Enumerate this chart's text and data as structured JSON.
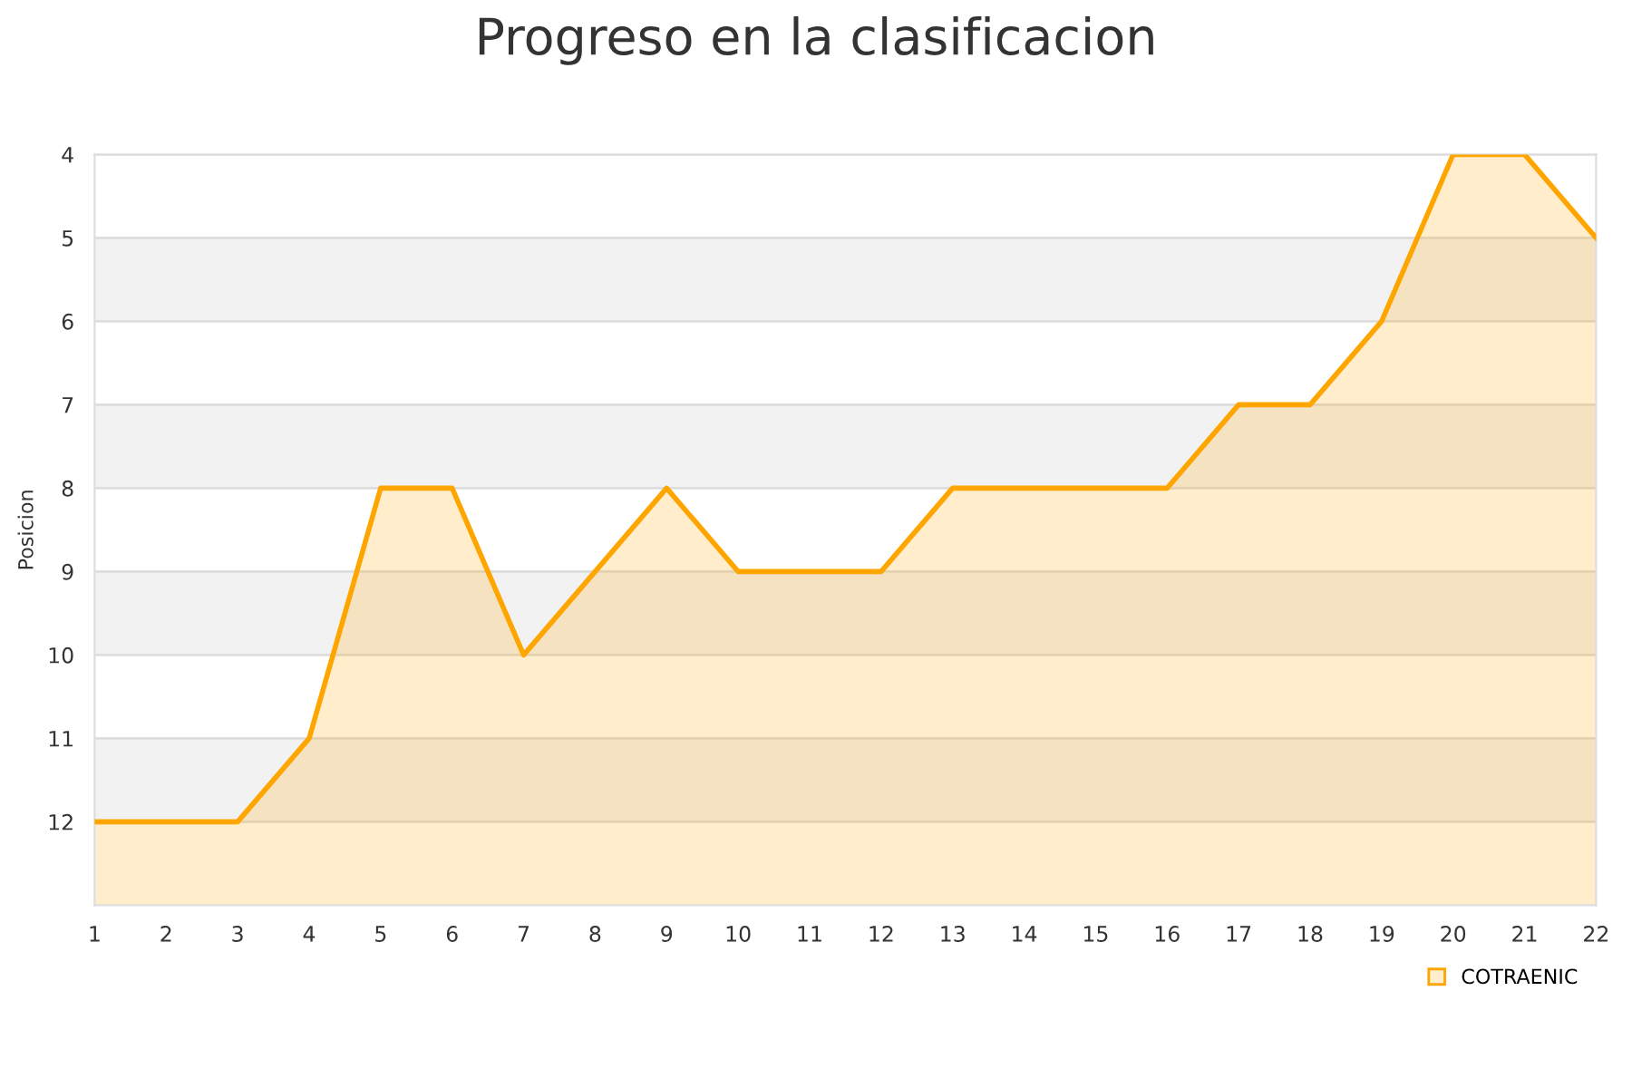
{
  "chart_data": {
    "type": "area",
    "title": "Progreso en la clasificacion",
    "ylabel": "Posicion",
    "x": [
      1,
      2,
      3,
      4,
      5,
      6,
      7,
      8,
      9,
      10,
      11,
      12,
      13,
      14,
      15,
      16,
      17,
      18,
      19,
      20,
      21,
      22
    ],
    "series": [
      {
        "name": "COTRAENIC",
        "color": "#ffa500",
        "values": [
          12,
          12,
          12,
          11,
          8,
          8,
          10,
          9,
          8,
          9,
          9,
          9,
          8,
          8,
          8,
          8,
          7,
          7,
          6,
          4,
          4,
          5
        ]
      }
    ],
    "xlim": [
      1,
      22
    ],
    "xticks": [
      1,
      2,
      3,
      4,
      5,
      6,
      7,
      8,
      9,
      10,
      11,
      12,
      13,
      14,
      15,
      16,
      17,
      18,
      19,
      20,
      21,
      22
    ],
    "ylim": [
      13,
      4
    ],
    "yticks": [
      4,
      5,
      6,
      7,
      8,
      9,
      10,
      11,
      12
    ],
    "bands": [
      {
        "axis": "y",
        "from": 5,
        "to": 6,
        "color": "#f2f2f2"
      },
      {
        "axis": "y",
        "from": 7,
        "to": 8,
        "color": "#f2f2f2"
      },
      {
        "axis": "y",
        "from": 9,
        "to": 10,
        "color": "#f2f2f2"
      },
      {
        "axis": "y",
        "from": 11,
        "to": 12,
        "color": "#f2f2f2"
      }
    ],
    "grid": "y",
    "legend": "bottom right"
  }
}
